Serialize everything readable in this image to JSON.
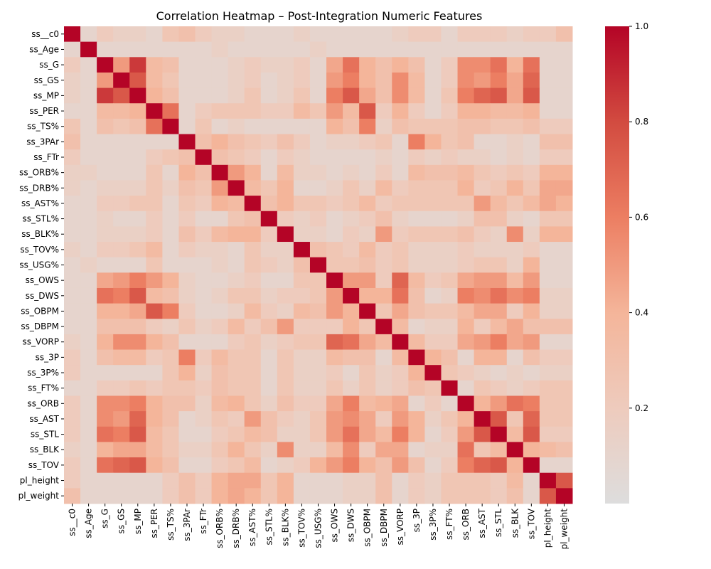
{
  "chart_data": {
    "type": "heatmap",
    "title": "Correlation Heatmap – Post-Integration Numeric Features",
    "labels": [
      "ss__c0",
      "ss_Age",
      "ss_G",
      "ss_GS",
      "ss_MP",
      "ss_PER",
      "ss_TS%",
      "ss_3PAr",
      "ss_FTr",
      "ss_ORB%",
      "ss_DRB%",
      "ss_AST%",
      "ss_STL%",
      "ss_BLK%",
      "ss_TOV%",
      "ss_USG%",
      "ss_OWS",
      "ss_DWS",
      "ss_OBPM",
      "ss_DBPM",
      "ss_VORP",
      "ss_3P",
      "ss_3P%",
      "ss_FT%",
      "ss_ORB",
      "ss_AST",
      "ss_STL",
      "ss_BLK",
      "ss_TOV",
      "pl_height",
      "pl_weight"
    ],
    "matrix": [
      [
        1.0,
        0.1,
        0.2,
        0.15,
        0.15,
        0.1,
        0.25,
        0.3,
        0.2,
        0.15,
        0.15,
        0.1,
        0.1,
        0.1,
        0.15,
        0.1,
        0.1,
        0.1,
        0.1,
        0.1,
        0.15,
        0.2,
        0.2,
        0.1,
        0.2,
        0.2,
        0.2,
        0.15,
        0.2,
        0.2,
        0.3
      ],
      [
        0.1,
        1.0,
        0.1,
        0.1,
        0.1,
        0.1,
        0.1,
        0.1,
        0.1,
        0.15,
        0.1,
        0.1,
        0.1,
        0.1,
        0.1,
        0.15,
        0.1,
        0.1,
        0.1,
        0.1,
        0.1,
        0.1,
        0.1,
        0.1,
        0.1,
        0.1,
        0.1,
        0.1,
        0.1,
        0.1,
        0.1
      ],
      [
        0.2,
        0.1,
        1.0,
        0.5,
        0.85,
        0.35,
        0.3,
        0.1,
        0.1,
        0.1,
        0.15,
        0.2,
        0.15,
        0.15,
        0.2,
        0.1,
        0.45,
        0.65,
        0.4,
        0.3,
        0.4,
        0.3,
        0.1,
        0.2,
        0.55,
        0.55,
        0.65,
        0.4,
        0.65,
        0.1,
        0.1
      ],
      [
        0.15,
        0.1,
        0.5,
        1.0,
        0.75,
        0.35,
        0.25,
        0.1,
        0.1,
        0.1,
        0.15,
        0.2,
        0.1,
        0.15,
        0.2,
        0.1,
        0.5,
        0.6,
        0.4,
        0.3,
        0.55,
        0.35,
        0.1,
        0.2,
        0.55,
        0.5,
        0.6,
        0.45,
        0.7,
        0.1,
        0.1
      ],
      [
        0.15,
        0.1,
        0.85,
        0.75,
        1.0,
        0.4,
        0.3,
        0.1,
        0.1,
        0.1,
        0.15,
        0.25,
        0.1,
        0.15,
        0.25,
        0.1,
        0.6,
        0.75,
        0.45,
        0.3,
        0.55,
        0.35,
        0.1,
        0.25,
        0.6,
        0.7,
        0.75,
        0.45,
        0.75,
        0.1,
        0.1
      ],
      [
        0.1,
        0.1,
        0.35,
        0.35,
        0.4,
        1.0,
        0.65,
        0.1,
        0.2,
        0.25,
        0.25,
        0.25,
        0.2,
        0.2,
        0.35,
        0.25,
        0.5,
        0.35,
        0.75,
        0.2,
        0.4,
        0.2,
        0.1,
        0.2,
        0.4,
        0.4,
        0.35,
        0.35,
        0.4,
        0.1,
        0.1
      ],
      [
        0.25,
        0.1,
        0.3,
        0.25,
        0.3,
        0.65,
        1.0,
        0.1,
        0.25,
        0.1,
        0.15,
        0.1,
        0.1,
        0.1,
        0.1,
        0.1,
        0.4,
        0.3,
        0.6,
        0.15,
        0.3,
        0.25,
        0.25,
        0.25,
        0.3,
        0.3,
        0.25,
        0.25,
        0.3,
        0.2,
        0.2
      ],
      [
        0.3,
        0.1,
        0.1,
        0.1,
        0.1,
        0.1,
        0.1,
        1.0,
        0.3,
        0.4,
        0.3,
        0.25,
        0.2,
        0.3,
        0.2,
        0.1,
        0.15,
        0.15,
        0.2,
        0.25,
        0.1,
        0.6,
        0.4,
        0.25,
        0.3,
        0.1,
        0.1,
        0.15,
        0.1,
        0.3,
        0.3
      ],
      [
        0.2,
        0.1,
        0.1,
        0.1,
        0.1,
        0.2,
        0.25,
        0.3,
        1.0,
        0.3,
        0.25,
        0.2,
        0.1,
        0.2,
        0.15,
        0.1,
        0.1,
        0.1,
        0.1,
        0.15,
        0.1,
        0.2,
        0.15,
        0.2,
        0.15,
        0.15,
        0.1,
        0.15,
        0.1,
        0.2,
        0.2
      ],
      [
        0.15,
        0.15,
        0.1,
        0.1,
        0.1,
        0.25,
        0.1,
        0.4,
        0.3,
        1.0,
        0.5,
        0.4,
        0.1,
        0.35,
        0.15,
        0.15,
        0.1,
        0.15,
        0.1,
        0.2,
        0.1,
        0.35,
        0.3,
        0.3,
        0.35,
        0.25,
        0.2,
        0.25,
        0.2,
        0.4,
        0.4
      ],
      [
        0.15,
        0.1,
        0.15,
        0.15,
        0.15,
        0.25,
        0.15,
        0.3,
        0.25,
        0.5,
        1.0,
        0.35,
        0.25,
        0.4,
        0.1,
        0.1,
        0.15,
        0.25,
        0.15,
        0.35,
        0.2,
        0.25,
        0.25,
        0.25,
        0.4,
        0.2,
        0.25,
        0.4,
        0.25,
        0.45,
        0.45
      ],
      [
        0.1,
        0.1,
        0.2,
        0.2,
        0.25,
        0.25,
        0.1,
        0.25,
        0.2,
        0.4,
        0.35,
        1.0,
        0.3,
        0.4,
        0.25,
        0.25,
        0.2,
        0.25,
        0.35,
        0.2,
        0.25,
        0.25,
        0.25,
        0.25,
        0.25,
        0.5,
        0.35,
        0.25,
        0.35,
        0.45,
        0.4
      ],
      [
        0.1,
        0.1,
        0.15,
        0.1,
        0.1,
        0.2,
        0.1,
        0.2,
        0.1,
        0.1,
        0.25,
        0.3,
        1.0,
        0.2,
        0.15,
        0.2,
        0.1,
        0.15,
        0.2,
        0.3,
        0.15,
        0.1,
        0.1,
        0.1,
        0.15,
        0.3,
        0.3,
        0.15,
        0.1,
        0.25,
        0.25
      ],
      [
        0.1,
        0.1,
        0.15,
        0.15,
        0.15,
        0.2,
        0.1,
        0.3,
        0.2,
        0.35,
        0.4,
        0.4,
        0.2,
        1.0,
        0.15,
        0.15,
        0.1,
        0.2,
        0.15,
        0.5,
        0.2,
        0.25,
        0.25,
        0.25,
        0.3,
        0.2,
        0.15,
        0.55,
        0.15,
        0.4,
        0.4
      ],
      [
        0.15,
        0.1,
        0.2,
        0.2,
        0.25,
        0.35,
        0.1,
        0.2,
        0.15,
        0.15,
        0.1,
        0.25,
        0.15,
        0.15,
        1.0,
        0.3,
        0.25,
        0.2,
        0.35,
        0.2,
        0.25,
        0.15,
        0.15,
        0.15,
        0.2,
        0.15,
        0.15,
        0.15,
        0.2,
        0.1,
        0.1
      ],
      [
        0.1,
        0.15,
        0.1,
        0.1,
        0.1,
        0.25,
        0.1,
        0.1,
        0.1,
        0.15,
        0.1,
        0.25,
        0.2,
        0.15,
        0.3,
        1.0,
        0.25,
        0.25,
        0.3,
        0.2,
        0.25,
        0.15,
        0.15,
        0.15,
        0.2,
        0.25,
        0.25,
        0.15,
        0.4,
        0.1,
        0.1
      ],
      [
        0.1,
        0.1,
        0.45,
        0.5,
        0.6,
        0.5,
        0.4,
        0.15,
        0.1,
        0.1,
        0.15,
        0.2,
        0.1,
        0.1,
        0.25,
        0.25,
        1.0,
        0.5,
        0.5,
        0.2,
        0.7,
        0.35,
        0.2,
        0.25,
        0.45,
        0.5,
        0.5,
        0.35,
        0.5,
        0.1,
        0.1
      ],
      [
        0.1,
        0.1,
        0.65,
        0.6,
        0.75,
        0.35,
        0.3,
        0.15,
        0.1,
        0.15,
        0.25,
        0.25,
        0.15,
        0.2,
        0.2,
        0.25,
        0.5,
        1.0,
        0.4,
        0.4,
        0.65,
        0.3,
        0.1,
        0.15,
        0.6,
        0.55,
        0.65,
        0.55,
        0.6,
        0.15,
        0.15
      ],
      [
        0.1,
        0.1,
        0.4,
        0.4,
        0.45,
        0.75,
        0.6,
        0.2,
        0.1,
        0.1,
        0.15,
        0.35,
        0.2,
        0.15,
        0.35,
        0.3,
        0.5,
        0.4,
        1.0,
        0.25,
        0.45,
        0.3,
        0.25,
        0.25,
        0.35,
        0.45,
        0.45,
        0.2,
        0.4,
        0.15,
        0.15
      ],
      [
        0.1,
        0.1,
        0.3,
        0.3,
        0.3,
        0.2,
        0.15,
        0.25,
        0.15,
        0.2,
        0.35,
        0.2,
        0.3,
        0.5,
        0.2,
        0.2,
        0.2,
        0.4,
        0.25,
        1.0,
        0.35,
        0.1,
        0.15,
        0.15,
        0.4,
        0.2,
        0.35,
        0.45,
        0.3,
        0.3,
        0.3
      ],
      [
        0.15,
        0.1,
        0.4,
        0.55,
        0.55,
        0.4,
        0.3,
        0.1,
        0.1,
        0.1,
        0.2,
        0.25,
        0.15,
        0.2,
        0.25,
        0.25,
        0.7,
        0.65,
        0.45,
        0.35,
        1.0,
        0.35,
        0.2,
        0.2,
        0.45,
        0.5,
        0.6,
        0.45,
        0.5,
        0.1,
        0.1
      ],
      [
        0.2,
        0.1,
        0.3,
        0.35,
        0.35,
        0.2,
        0.25,
        0.6,
        0.2,
        0.35,
        0.25,
        0.25,
        0.1,
        0.25,
        0.15,
        0.15,
        0.35,
        0.3,
        0.3,
        0.1,
        0.35,
        1.0,
        0.4,
        0.3,
        0.1,
        0.4,
        0.4,
        0.1,
        0.3,
        0.2,
        0.2
      ],
      [
        0.2,
        0.1,
        0.1,
        0.1,
        0.1,
        0.1,
        0.25,
        0.4,
        0.15,
        0.3,
        0.25,
        0.25,
        0.1,
        0.25,
        0.15,
        0.15,
        0.2,
        0.1,
        0.25,
        0.15,
        0.2,
        0.4,
        1.0,
        0.25,
        0.2,
        0.15,
        0.1,
        0.15,
        0.1,
        0.15,
        0.15
      ],
      [
        0.1,
        0.1,
        0.2,
        0.2,
        0.25,
        0.2,
        0.25,
        0.25,
        0.2,
        0.3,
        0.25,
        0.25,
        0.1,
        0.25,
        0.15,
        0.15,
        0.25,
        0.15,
        0.25,
        0.15,
        0.2,
        0.3,
        0.25,
        1.0,
        0.1,
        0.25,
        0.2,
        0.15,
        0.2,
        0.25,
        0.25
      ],
      [
        0.2,
        0.1,
        0.55,
        0.55,
        0.6,
        0.4,
        0.3,
        0.3,
        0.15,
        0.35,
        0.4,
        0.25,
        0.15,
        0.3,
        0.2,
        0.2,
        0.45,
        0.6,
        0.35,
        0.4,
        0.45,
        0.1,
        0.2,
        0.1,
        1.0,
        0.4,
        0.5,
        0.65,
        0.6,
        0.25,
        0.25
      ],
      [
        0.2,
        0.1,
        0.55,
        0.5,
        0.7,
        0.4,
        0.3,
        0.1,
        0.15,
        0.25,
        0.2,
        0.5,
        0.3,
        0.2,
        0.15,
        0.25,
        0.5,
        0.55,
        0.45,
        0.2,
        0.5,
        0.4,
        0.15,
        0.25,
        0.4,
        1.0,
        0.75,
        0.25,
        0.7,
        0.25,
        0.25
      ],
      [
        0.2,
        0.1,
        0.65,
        0.6,
        0.75,
        0.35,
        0.25,
        0.1,
        0.1,
        0.2,
        0.25,
        0.35,
        0.3,
        0.15,
        0.15,
        0.25,
        0.5,
        0.65,
        0.45,
        0.35,
        0.6,
        0.4,
        0.1,
        0.2,
        0.5,
        0.75,
        1.0,
        0.35,
        0.75,
        0.2,
        0.2
      ],
      [
        0.15,
        0.1,
        0.4,
        0.45,
        0.45,
        0.35,
        0.25,
        0.15,
        0.15,
        0.25,
        0.4,
        0.25,
        0.15,
        0.55,
        0.15,
        0.15,
        0.35,
        0.55,
        0.2,
        0.45,
        0.45,
        0.1,
        0.15,
        0.15,
        0.65,
        0.25,
        0.35,
        1.0,
        0.4,
        0.35,
        0.3
      ],
      [
        0.2,
        0.1,
        0.65,
        0.7,
        0.75,
        0.4,
        0.3,
        0.1,
        0.1,
        0.2,
        0.25,
        0.35,
        0.1,
        0.15,
        0.2,
        0.4,
        0.5,
        0.6,
        0.4,
        0.3,
        0.5,
        0.3,
        0.1,
        0.2,
        0.6,
        0.7,
        0.75,
        0.4,
        1.0,
        0.1,
        0.1
      ],
      [
        0.2,
        0.1,
        0.1,
        0.1,
        0.1,
        0.1,
        0.2,
        0.3,
        0.2,
        0.4,
        0.45,
        0.45,
        0.25,
        0.4,
        0.1,
        0.1,
        0.1,
        0.15,
        0.15,
        0.3,
        0.1,
        0.2,
        0.15,
        0.25,
        0.25,
        0.25,
        0.2,
        0.35,
        0.1,
        1.0,
        0.75
      ],
      [
        0.3,
        0.1,
        0.1,
        0.1,
        0.1,
        0.1,
        0.2,
        0.3,
        0.2,
        0.4,
        0.45,
        0.4,
        0.25,
        0.4,
        0.1,
        0.1,
        0.1,
        0.15,
        0.15,
        0.3,
        0.1,
        0.2,
        0.15,
        0.25,
        0.25,
        0.25,
        0.2,
        0.3,
        0.1,
        0.75,
        1.0
      ]
    ],
    "colorbar": {
      "min": 0.0,
      "max": 1.0,
      "ticks": [
        "0.2",
        "0.4",
        "0.6",
        "0.8",
        "1.0"
      ],
      "tick_values": [
        0.2,
        0.4,
        0.6,
        0.8,
        1.0
      ]
    },
    "colormap": "coolwarm-center",
    "colors": {
      "low": "#dddddd",
      "mid": "#f4a582",
      "high": "#b40426"
    },
    "grid": false,
    "legend": "colorbar-right"
  }
}
